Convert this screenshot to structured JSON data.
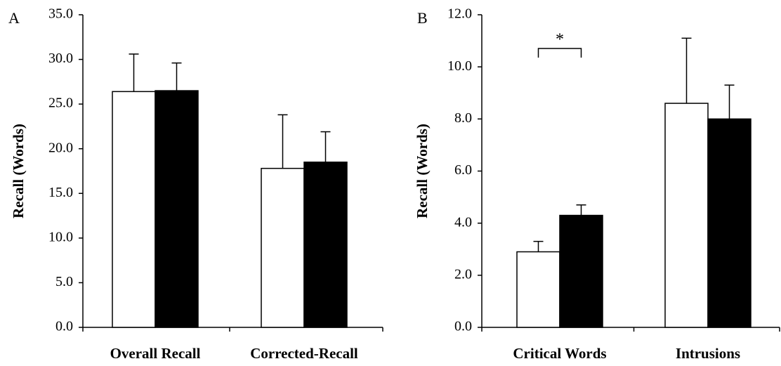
{
  "chart_data": [
    {
      "panel_label": "A",
      "type": "bar",
      "ylabel": "Recall (Words)",
      "ylim": [
        0,
        35
      ],
      "yticks": [
        "0.0",
        "5.0",
        "10.0",
        "15.0",
        "20.0",
        "25.0",
        "30.0",
        "35.0"
      ],
      "categories": [
        "Overall Recall",
        "Corrected-Recall"
      ],
      "series": [
        {
          "fill": "#ffffff",
          "values": [
            26.4,
            17.8
          ],
          "error": [
            4.2,
            6.0
          ]
        },
        {
          "fill": "#000000",
          "values": [
            26.5,
            18.5
          ],
          "error": [
            3.1,
            3.4
          ]
        }
      ],
      "significance": []
    },
    {
      "panel_label": "B",
      "type": "bar",
      "ylabel": "Recall (Words)",
      "ylim": [
        0,
        12
      ],
      "yticks": [
        "0.0",
        "2.0",
        "4.0",
        "6.0",
        "8.0",
        "10.0",
        "12.0"
      ],
      "categories": [
        "Critical Words",
        "Intrusions"
      ],
      "series": [
        {
          "fill": "#ffffff",
          "values": [
            2.9,
            8.6
          ],
          "error": [
            0.4,
            2.5
          ]
        },
        {
          "fill": "#000000",
          "values": [
            4.3,
            8.0
          ],
          "error": [
            0.4,
            1.3
          ]
        }
      ],
      "significance": [
        {
          "category_index": 0,
          "label": "*"
        }
      ]
    }
  ]
}
